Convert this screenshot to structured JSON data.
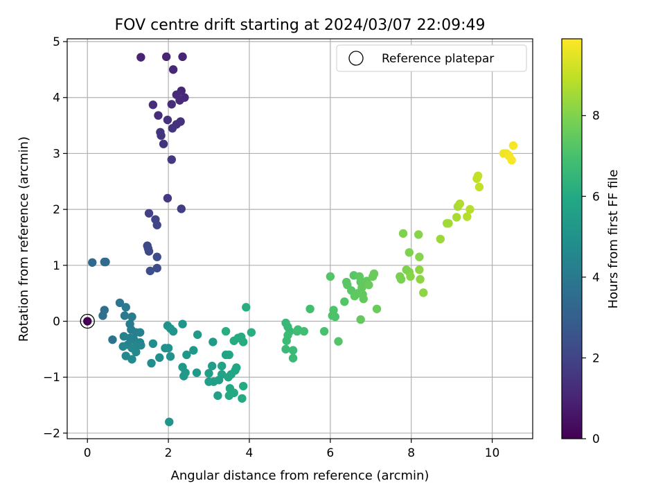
{
  "chart_data": {
    "type": "scatter",
    "title": "FOV centre drift starting at 2024/03/07 22:09:49",
    "xlabel": "Angular distance from reference (arcmin)",
    "ylabel": "Rotation from reference (arcmin)",
    "xlim": [
      -0.5,
      11.0
    ],
    "ylim": [
      -2.1,
      5.05
    ],
    "xticks": [
      0,
      2,
      4,
      6,
      8,
      10
    ],
    "yticks": [
      -2,
      -1,
      0,
      1,
      2,
      3,
      4,
      5
    ],
    "grid": true,
    "legend": {
      "placement": "top-right",
      "entries": [
        "Reference platepar"
      ]
    },
    "reference_point": {
      "x": 0,
      "y": 0,
      "c": 0
    },
    "colorbar": {
      "label": "Hours from first FF file",
      "range": [
        0,
        9.9
      ],
      "ticks": [
        0,
        2,
        4,
        6,
        8
      ],
      "colormap": "viridis"
    },
    "points": [
      [
        1.32,
        4.72,
        1.0
      ],
      [
        1.95,
        4.73,
        1.0
      ],
      [
        2.35,
        4.73,
        1.0
      ],
      [
        2.12,
        4.5,
        1.1
      ],
      [
        2.32,
        4.12,
        1.1
      ],
      [
        2.2,
        4.05,
        1.2
      ],
      [
        2.4,
        4.0,
        1.2
      ],
      [
        2.28,
        3.95,
        1.2
      ],
      [
        2.08,
        3.88,
        1.3
      ],
      [
        1.62,
        3.87,
        1.3
      ],
      [
        1.75,
        3.68,
        1.3
      ],
      [
        1.98,
        3.6,
        1.4
      ],
      [
        2.3,
        3.57,
        1.4
      ],
      [
        2.2,
        3.52,
        1.4
      ],
      [
        2.1,
        3.45,
        1.5
      ],
      [
        1.8,
        3.38,
        1.5
      ],
      [
        1.82,
        3.32,
        1.5
      ],
      [
        1.88,
        3.17,
        1.5
      ],
      [
        2.08,
        2.89,
        1.6
      ],
      [
        1.98,
        2.2,
        1.7
      ],
      [
        2.32,
        2.01,
        1.8
      ],
      [
        1.52,
        1.93,
        1.9
      ],
      [
        1.68,
        1.82,
        2.0
      ],
      [
        1.72,
        1.72,
        2.0
      ],
      [
        1.48,
        1.35,
        2.1
      ],
      [
        1.5,
        1.3,
        2.2
      ],
      [
        1.52,
        1.25,
        2.2
      ],
      [
        1.72,
        1.15,
        2.3
      ],
      [
        1.72,
        0.95,
        2.3
      ],
      [
        1.55,
        0.9,
        2.4
      ],
      [
        0.12,
        1.05,
        3.4
      ],
      [
        0.45,
        1.06,
        3.4
      ],
      [
        0.42,
        1.06,
        3.4
      ],
      [
        0.42,
        0.2,
        3.6
      ],
      [
        0.38,
        0.1,
        3.6
      ],
      [
        0.62,
        -0.33,
        3.8
      ],
      [
        0.8,
        0.33,
        3.9
      ],
      [
        0.95,
        0.25,
        4.0
      ],
      [
        0.92,
        0.1,
        4.0
      ],
      [
        1.1,
        0.08,
        4.1
      ],
      [
        1.05,
        -0.05,
        4.1
      ],
      [
        1.08,
        -0.15,
        4.2
      ],
      [
        1.2,
        -0.2,
        4.2
      ],
      [
        1.3,
        -0.2,
        4.3
      ],
      [
        0.9,
        -0.27,
        4.3
      ],
      [
        1.05,
        -0.3,
        4.3
      ],
      [
        1.15,
        -0.33,
        4.4
      ],
      [
        1.3,
        -0.38,
        4.4
      ],
      [
        1.0,
        -0.42,
        4.4
      ],
      [
        1.22,
        -0.43,
        4.5
      ],
      [
        1.32,
        -0.43,
        4.5
      ],
      [
        0.88,
        -0.45,
        4.5
      ],
      [
        1.1,
        -0.48,
        4.6
      ],
      [
        1.2,
        -0.55,
        4.6
      ],
      [
        0.95,
        -0.62,
        4.6
      ],
      [
        1.1,
        -0.68,
        4.7
      ],
      [
        1.62,
        -0.4,
        4.8
      ],
      [
        1.58,
        -0.75,
        4.8
      ],
      [
        1.78,
        -0.65,
        4.9
      ],
      [
        1.92,
        -0.48,
        4.9
      ],
      [
        2.0,
        -0.48,
        5.0
      ],
      [
        2.05,
        -0.63,
        5.0
      ],
      [
        1.98,
        -0.08,
        5.0
      ],
      [
        2.05,
        -0.13,
        5.1
      ],
      [
        2.12,
        -0.18,
        5.1
      ],
      [
        2.35,
        -0.05,
        5.1
      ],
      [
        2.02,
        -1.8,
        5.1
      ],
      [
        2.45,
        -0.6,
        5.2
      ],
      [
        2.62,
        -0.52,
        5.2
      ],
      [
        2.35,
        -0.82,
        5.2
      ],
      [
        2.42,
        -0.92,
        5.3
      ],
      [
        2.38,
        -0.98,
        5.3
      ],
      [
        2.7,
        -0.92,
        5.3
      ],
      [
        2.72,
        -0.24,
        5.4
      ],
      [
        3.1,
        -0.37,
        5.4
      ],
      [
        3.08,
        -0.8,
        5.5
      ],
      [
        3.0,
        -0.93,
        5.5
      ],
      [
        3.0,
        -1.08,
        5.5
      ],
      [
        3.12,
        -1.08,
        5.6
      ],
      [
        3.25,
        -1.05,
        5.6
      ],
      [
        3.22,
        -1.33,
        5.6
      ],
      [
        3.32,
        -0.8,
        5.7
      ],
      [
        3.32,
        -0.95,
        5.7
      ],
      [
        3.42,
        -0.6,
        5.7
      ],
      [
        3.5,
        -0.6,
        5.8
      ],
      [
        3.48,
        -1.0,
        5.8
      ],
      [
        3.55,
        -0.95,
        5.8
      ],
      [
        3.65,
        -0.88,
        5.9
      ],
      [
        3.68,
        -0.83,
        5.9
      ],
      [
        3.52,
        -1.2,
        5.9
      ],
      [
        3.5,
        -1.33,
        6.0
      ],
      [
        3.62,
        -1.28,
        6.0
      ],
      [
        3.82,
        -1.38,
        6.0
      ],
      [
        3.85,
        -1.16,
        6.0
      ],
      [
        3.62,
        -0.35,
        6.1
      ],
      [
        3.72,
        -0.3,
        6.1
      ],
      [
        3.8,
        -0.28,
        6.1
      ],
      [
        3.85,
        -0.37,
        6.1
      ],
      [
        3.42,
        -0.18,
        6.2
      ],
      [
        3.92,
        0.25,
        6.2
      ],
      [
        4.05,
        -0.2,
        6.2
      ],
      [
        4.9,
        -0.03,
        6.6
      ],
      [
        4.95,
        -0.1,
        6.6
      ],
      [
        5.0,
        -0.18,
        6.6
      ],
      [
        4.95,
        -0.25,
        6.7
      ],
      [
        4.92,
        -0.35,
        6.7
      ],
      [
        4.9,
        -0.5,
        6.7
      ],
      [
        5.08,
        -0.52,
        6.7
      ],
      [
        5.08,
        -0.66,
        6.7
      ],
      [
        5.2,
        -0.15,
        6.8
      ],
      [
        5.18,
        -0.18,
        6.8
      ],
      [
        5.35,
        -0.18,
        6.8
      ],
      [
        5.5,
        0.22,
        6.9
      ],
      [
        5.85,
        -0.18,
        7.0
      ],
      [
        6.08,
        0.2,
        7.1
      ],
      [
        6.05,
        0.1,
        7.1
      ],
      [
        6.12,
        0.08,
        7.1
      ],
      [
        6.2,
        -0.36,
        7.2
      ],
      [
        6.0,
        0.8,
        7.2
      ],
      [
        6.35,
        0.35,
        7.2
      ],
      [
        6.4,
        0.7,
        7.3
      ],
      [
        6.42,
        0.65,
        7.3
      ],
      [
        6.52,
        0.55,
        7.3
      ],
      [
        6.58,
        0.82,
        7.3
      ],
      [
        6.6,
        0.45,
        7.4
      ],
      [
        6.68,
        0.5,
        7.4
      ],
      [
        6.72,
        0.8,
        7.4
      ],
      [
        6.75,
        0.7,
        7.4
      ],
      [
        6.78,
        0.6,
        7.5
      ],
      [
        6.8,
        0.48,
        7.5
      ],
      [
        6.82,
        0.4,
        7.5
      ],
      [
        6.9,
        0.72,
        7.5
      ],
      [
        6.95,
        0.65,
        7.6
      ],
      [
        7.05,
        0.8,
        7.6
      ],
      [
        7.08,
        0.85,
        7.6
      ],
      [
        7.15,
        0.22,
        7.6
      ],
      [
        6.75,
        0.03,
        7.5
      ],
      [
        7.72,
        0.8,
        7.9
      ],
      [
        7.75,
        0.75,
        7.9
      ],
      [
        7.8,
        1.57,
        8.0
      ],
      [
        7.88,
        0.92,
        8.0
      ],
      [
        7.95,
        0.88,
        8.0
      ],
      [
        7.95,
        1.23,
        8.0
      ],
      [
        7.98,
        0.8,
        8.1
      ],
      [
        8.18,
        1.55,
        8.1
      ],
      [
        8.2,
        1.15,
        8.1
      ],
      [
        8.2,
        0.92,
        8.2
      ],
      [
        8.22,
        0.75,
        8.2
      ],
      [
        8.3,
        0.51,
        8.2
      ],
      [
        8.72,
        1.47,
        8.4
      ],
      [
        8.88,
        1.75,
        8.5
      ],
      [
        8.92,
        1.75,
        8.5
      ],
      [
        9.12,
        1.86,
        8.6
      ],
      [
        9.15,
        2.05,
        8.6
      ],
      [
        9.2,
        2.1,
        8.7
      ],
      [
        9.38,
        1.87,
        8.8
      ],
      [
        9.45,
        2.0,
        8.8
      ],
      [
        9.62,
        2.55,
        9.0
      ],
      [
        9.65,
        2.6,
        9.0
      ],
      [
        9.68,
        2.4,
        9.0
      ],
      [
        10.28,
        3.0,
        9.7
      ],
      [
        10.35,
        3.0,
        9.7
      ],
      [
        10.4,
        2.97,
        9.7
      ],
      [
        10.42,
        2.95,
        9.8
      ],
      [
        10.48,
        2.88,
        9.8
      ],
      [
        10.52,
        3.14,
        9.8
      ]
    ]
  }
}
